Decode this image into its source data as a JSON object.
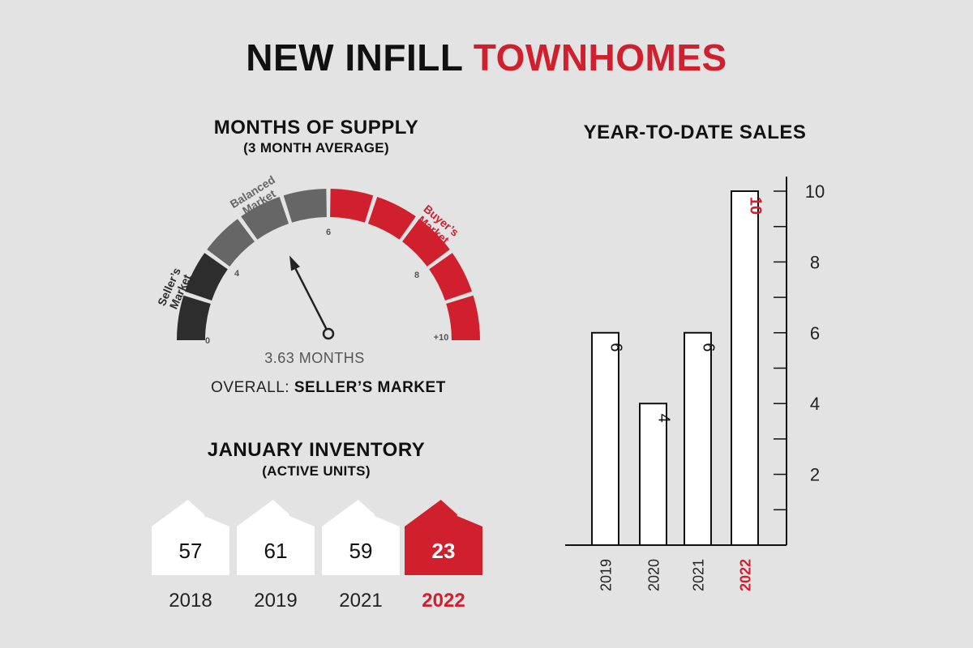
{
  "title": {
    "part1": "NEW INFILL",
    "part2": "TOWNHOMES"
  },
  "gauge": {
    "heading": "MONTHS OF SUPPLY",
    "subheading": "(3 MONTH AVERAGE)",
    "value": 3.63,
    "value_text": "3.63 MONTHS",
    "overall_label": "OVERALL:",
    "overall_value": "SELLER’S MARKET",
    "ticks": [
      "0",
      "4",
      "6",
      "8",
      "+10"
    ],
    "zone_labels": {
      "sellers": [
        "Seller’s",
        "Market"
      ],
      "balanced": [
        "Balanced",
        "Market"
      ],
      "buyers": [
        "Buyer’s",
        "Market"
      ]
    },
    "colors": {
      "sellers": "#2d2d2d",
      "balanced": "#666666",
      "buyers": "#d0202e"
    }
  },
  "inventory": {
    "heading": "JANUARY INVENTORY",
    "subheading": "(ACTIVE UNITS)",
    "items": [
      {
        "year": "2018",
        "value": "57",
        "highlight": false
      },
      {
        "year": "2019",
        "value": "61",
        "highlight": false
      },
      {
        "year": "2021",
        "value": "59",
        "highlight": false
      },
      {
        "year": "2022",
        "value": "23",
        "highlight": true
      }
    ]
  },
  "chart_data": {
    "type": "bar",
    "title": "YEAR-TO-DATE SALES",
    "categories": [
      "2019",
      "2020",
      "2021",
      "2022"
    ],
    "values": [
      6,
      4,
      6,
      10
    ],
    "highlight_category": "2022",
    "ylim": [
      0,
      10
    ],
    "y_tick_labels": [
      "2",
      "4",
      "6",
      "8",
      "10"
    ],
    "xlabel": "",
    "ylabel": "",
    "grid": false,
    "orientation": "bars vertical, labels rotated",
    "colors": {
      "bar_fill": "#ffffff",
      "bar_stroke": "#111111",
      "highlight": "#d0202e"
    }
  }
}
